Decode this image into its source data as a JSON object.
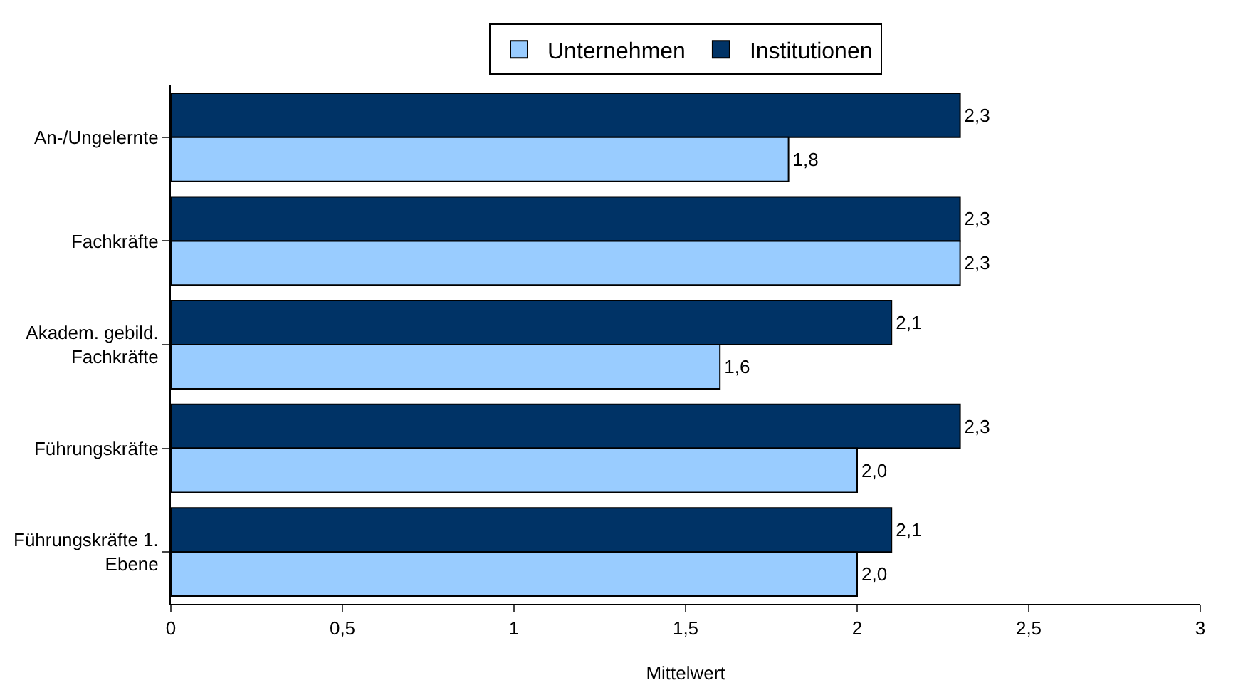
{
  "chart_data": {
    "type": "bar",
    "orientation": "horizontal",
    "xlabel": "Mittelwert",
    "categories": [
      "An-/Ungelernte",
      "Fachkräfte",
      "Akadem. gebild.\nFachkräfte",
      "Führungskräfte",
      "Führungskräfte 1.\nEbene"
    ],
    "series": [
      {
        "name": "Unternehmen",
        "color": "#99ccff",
        "values": [
          1.8,
          2.3,
          1.6,
          2.0,
          2.0
        ],
        "value_labels": [
          "1,8",
          "2,3",
          "1,6",
          "2,0",
          "2,0"
        ]
      },
      {
        "name": "Institutionen",
        "color": "#003366",
        "values": [
          2.3,
          2.3,
          2.1,
          2.3,
          2.1
        ],
        "value_labels": [
          "2,3",
          "2,3",
          "2,1",
          "2,3",
          "2,1"
        ]
      }
    ],
    "xlim": [
      0,
      3
    ],
    "xticks": [
      0,
      {
        "value": 0.5,
        "label": "0,5"
      },
      1,
      {
        "value": 1.5,
        "label": "1,5"
      },
      2,
      {
        "value": 2.5,
        "label": "2,5"
      },
      3
    ],
    "legend": "top",
    "grid": false
  }
}
